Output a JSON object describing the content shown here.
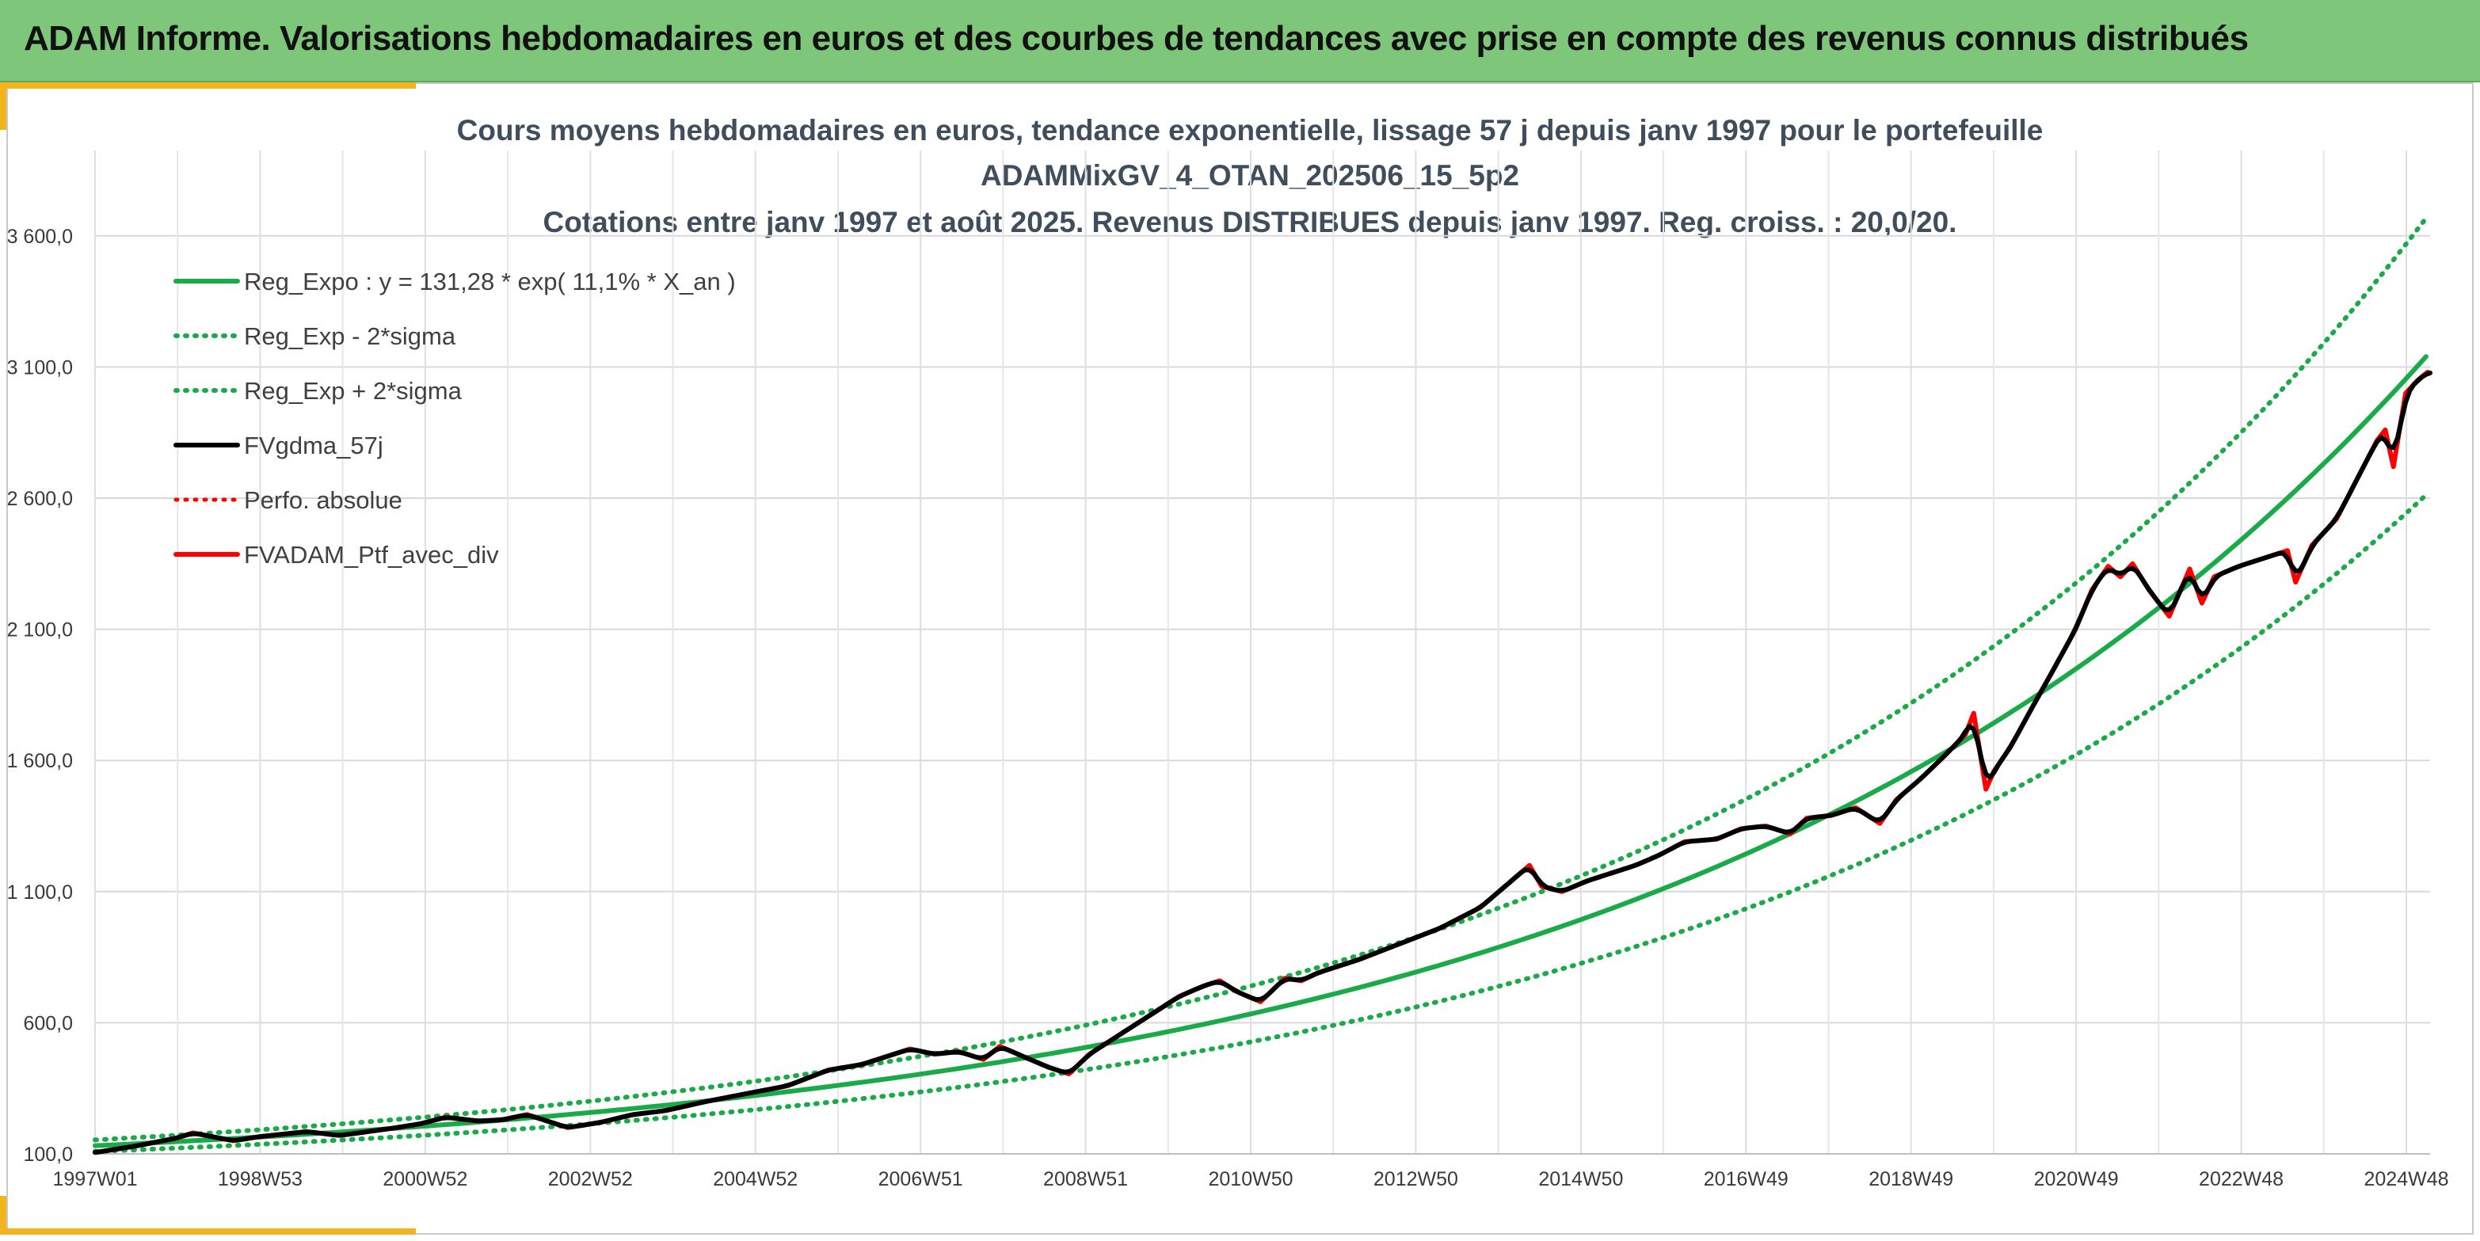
{
  "banner": {
    "title": "ADAM Informe. Valorisations hebdomadaires en euros et des courbes de tendances avec prise en compte des revenus connus distribués"
  },
  "colors": {
    "banner_bg": "#7ec67a",
    "accent": "#f2b51f",
    "regression": "#1aaa4a",
    "fvgdma": "#000000",
    "portfolio": "#ff0000"
  },
  "chart_data": {
    "type": "line",
    "title_lines": [
      "Cours moyens hebdomadaires en euros, tendance exponentielle, lissage 57 j depuis janv 1997 pour le portefeuille",
      "ADAMMixGV_4_OTAN_202506_15_5p2",
      "Cotations entre janv 1997 et août 2025. Revenus DISTRIBUES depuis janv 1997. Reg. croiss. : 20,0/20."
    ],
    "xlabel": "",
    "ylabel": "",
    "x_ticks": [
      "1997W01",
      "1998W53",
      "2000W52",
      "2002W52",
      "2004W52",
      "2006W51",
      "2008W51",
      "2010W50",
      "2012W50",
      "2014W50",
      "2016W49",
      "2018W49",
      "2020W49",
      "2022W48",
      "2024W48"
    ],
    "y_ticks": [
      "100,0",
      "600,0",
      "1 100,0",
      "1 600,0",
      "2 100,0",
      "2 600,0",
      "3 100,0",
      "3 600,0"
    ],
    "ylim": [
      100,
      3850
    ],
    "xlim": [
      1997.0,
      2025.65
    ],
    "grid": true,
    "legend_position": "top-left",
    "regression": {
      "a": 131.28,
      "b": 0.111,
      "upper_band_ratio": 1.168,
      "lower_band_ratio": 0.832
    },
    "series": [
      {
        "name": "Reg_Expo : y = 131,28 * exp( 11,1% *  X_an )",
        "style": "solid",
        "color": "#1aaa4a",
        "width": 6,
        "kind": "regression"
      },
      {
        "name": "Reg_Exp - 2*sigma",
        "style": "dotted",
        "color": "#1aaa4a",
        "width": 6,
        "kind": "lower"
      },
      {
        "name": "Reg_Exp + 2*sigma",
        "style": "dotted",
        "color": "#1aaa4a",
        "width": 6,
        "kind": "upper"
      },
      {
        "name": "FVgdma_57j",
        "style": "solid",
        "color": "#000000",
        "width": 6,
        "kind": "smooth"
      },
      {
        "name": "Perfo. absolue",
        "style": "dotted",
        "color": "#ff0000",
        "width": 5,
        "kind": "none"
      },
      {
        "name": "FVADAM_Ptf_avec_div",
        "style": "solid",
        "color": "#ff0000",
        "width": 6,
        "kind": "data",
        "x": [
          1997.0,
          1997.5,
          1998.0,
          1998.2,
          1998.7,
          1999.0,
          1999.6,
          2000.0,
          2000.7,
          2001.0,
          2001.3,
          2001.7,
          2002.0,
          2002.3,
          2002.8,
          2003.2,
          2003.6,
          2004.0,
          2004.5,
          2005.0,
          2005.5,
          2006.0,
          2006.4,
          2006.8,
          2007.0,
          2007.3,
          2007.6,
          2007.9,
          2008.1,
          2008.4,
          2008.7,
          2008.95,
          2009.2,
          2009.6,
          2010.0,
          2010.3,
          2010.6,
          2010.8,
          2011.0,
          2011.3,
          2011.6,
          2011.8,
          2012.0,
          2012.5,
          2013.0,
          2013.5,
          2014.0,
          2014.3,
          2014.6,
          2014.75,
          2015.0,
          2015.3,
          2015.6,
          2015.9,
          2016.2,
          2016.5,
          2016.9,
          2017.2,
          2017.5,
          2017.8,
          2018.0,
          2018.3,
          2018.6,
          2018.9,
          2019.1,
          2019.4,
          2019.7,
          2019.95,
          2020.05,
          2020.2,
          2020.3,
          2020.5,
          2020.8,
          2021.0,
          2021.3,
          2021.5,
          2021.7,
          2021.85,
          2022.0,
          2022.2,
          2022.45,
          2022.7,
          2022.85,
          2023.0,
          2023.3,
          2023.6,
          2023.9,
          2024.0,
          2024.2,
          2024.5,
          2024.8,
          2025.0,
          2025.1,
          2025.2,
          2025.35,
          2025.5,
          2025.62
        ],
        "y": [
          105,
          130,
          160,
          180,
          150,
          165,
          185,
          170,
          200,
          215,
          240,
          225,
          230,
          250,
          200,
          220,
          250,
          265,
          300,
          330,
          360,
          420,
          440,
          480,
          500,
          480,
          490,
          460,
          510,
          470,
          430,
          405,
          480,
          560,
          640,
          700,
          740,
          760,
          720,
          680,
          770,
          760,
          790,
          840,
          900,
          960,
          1040,
          1120,
          1200,
          1120,
          1100,
          1140,
          1170,
          1200,
          1240,
          1290,
          1300,
          1340,
          1350,
          1320,
          1380,
          1390,
          1420,
          1360,
          1450,
          1530,
          1620,
          1700,
          1780,
          1490,
          1560,
          1650,
          1820,
          1930,
          2100,
          2250,
          2340,
          2300,
          2350,
          2250,
          2150,
          2330,
          2200,
          2300,
          2340,
          2370,
          2400,
          2280,
          2420,
          2520,
          2700,
          2820,
          2860,
          2720,
          3000,
          3050,
          3080
        ]
      }
    ]
  }
}
